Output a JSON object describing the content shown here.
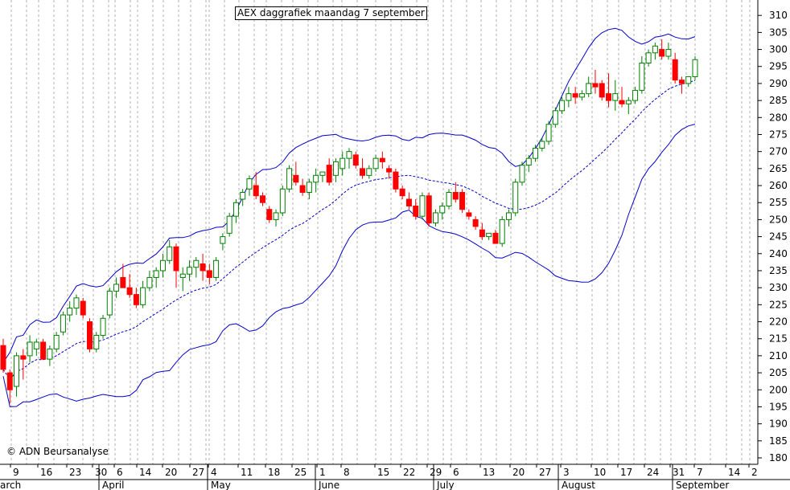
{
  "title": "AEX daggrafiek maandag 7 september",
  "copyright": "© ADN Beursanalyse",
  "chart_data": {
    "type": "candlestick",
    "title": "AEX daggrafiek maandag 7 september",
    "ylim": [
      178,
      315
    ],
    "y_ticks": [
      180,
      185,
      190,
      195,
      200,
      205,
      210,
      215,
      220,
      225,
      230,
      235,
      240,
      245,
      250,
      255,
      260,
      265,
      270,
      275,
      280,
      285,
      290,
      295,
      300,
      305,
      310
    ],
    "x_ticks": [
      "9",
      "16",
      "23",
      "30",
      "6",
      "14",
      "20",
      "27",
      "4",
      "11",
      "18",
      "25",
      "1",
      "8",
      "15",
      "22",
      "29",
      "6",
      "13",
      "20",
      "27",
      "3",
      "10",
      "17",
      "24",
      "31",
      "7",
      "14",
      "2"
    ],
    "months": [
      "arch",
      "April",
      "May",
      "June",
      "July",
      "August",
      "September"
    ],
    "grid": true,
    "overlays": [
      "bollinger-upper",
      "bollinger-middle",
      "bollinger-lower"
    ],
    "colors": {
      "up": "#008000",
      "down": "#ff0000",
      "bands": "#0000cc",
      "grid": "#b0b0b0"
    },
    "candles": [
      [
        213,
        215,
        205,
        206
      ],
      [
        205,
        206,
        196,
        200
      ],
      [
        201,
        211,
        198,
        210
      ],
      [
        210,
        212,
        203,
        209
      ],
      [
        210,
        216,
        208,
        214
      ],
      [
        212,
        215,
        210,
        214
      ],
      [
        214,
        215,
        210,
        209
      ],
      [
        209,
        213,
        207,
        212
      ],
      [
        212,
        217,
        211,
        216
      ],
      [
        217,
        223,
        216,
        222
      ],
      [
        222,
        226,
        220,
        224
      ],
      [
        224,
        228,
        222,
        227
      ],
      [
        226,
        227,
        221,
        222
      ],
      [
        220,
        221,
        211,
        212
      ],
      [
        212,
        217,
        211,
        216
      ],
      [
        216,
        222,
        215,
        221
      ],
      [
        222,
        230,
        221,
        229
      ],
      [
        229,
        233,
        227,
        231
      ],
      [
        233,
        237,
        230,
        230
      ],
      [
        230,
        234,
        227,
        228
      ],
      [
        228,
        230,
        224,
        225
      ],
      [
        225,
        232,
        224,
        230
      ],
      [
        230,
        235,
        229,
        233
      ],
      [
        233,
        236,
        230,
        235
      ],
      [
        235,
        240,
        233,
        238
      ],
      [
        238,
        244,
        237,
        242
      ],
      [
        242,
        243,
        230,
        235
      ],
      [
        233,
        236,
        229,
        234
      ],
      [
        234,
        238,
        232,
        236
      ],
      [
        236,
        239,
        233,
        238
      ],
      [
        237,
        240,
        232,
        235
      ],
      [
        235,
        237,
        231,
        233
      ],
      [
        233,
        239,
        232,
        238
      ],
      [
        243,
        246,
        241,
        245
      ],
      [
        246,
        252,
        245,
        251
      ],
      [
        251,
        256,
        249,
        255
      ],
      [
        256,
        259,
        254,
        258
      ],
      [
        259,
        263,
        257,
        262
      ],
      [
        260,
        264,
        256,
        257
      ],
      [
        257,
        258,
        254,
        255
      ],
      [
        253,
        254,
        249,
        250
      ],
      [
        250,
        253,
        248,
        252
      ],
      [
        252,
        260,
        251,
        259
      ],
      [
        259,
        266,
        258,
        265
      ],
      [
        263,
        267,
        260,
        261
      ],
      [
        260,
        262,
        257,
        258
      ],
      [
        258,
        262,
        256,
        261
      ],
      [
        261,
        265,
        258,
        263
      ],
      [
        263,
        264,
        261,
        264
      ],
      [
        266,
        268,
        260,
        261
      ],
      [
        263,
        268,
        261,
        267
      ],
      [
        265,
        270,
        263,
        268
      ],
      [
        268,
        271,
        265,
        270
      ],
      [
        269,
        270,
        265,
        266
      ],
      [
        265,
        268,
        262,
        263
      ],
      [
        263,
        266,
        262,
        265
      ],
      [
        265,
        269,
        264,
        268
      ],
      [
        268,
        270,
        265,
        267
      ],
      [
        265,
        266,
        262,
        264
      ],
      [
        264,
        265,
        258,
        259
      ],
      [
        259,
        260,
        256,
        257
      ],
      [
        256,
        258,
        253,
        254
      ],
      [
        254,
        256,
        250,
        251
      ],
      [
        251,
        258,
        250,
        257
      ],
      [
        257,
        258,
        248,
        249
      ],
      [
        249,
        253,
        248,
        252
      ],
      [
        252,
        255,
        250,
        254
      ],
      [
        254,
        259,
        253,
        258
      ],
      [
        258,
        261,
        255,
        256
      ],
      [
        258,
        259,
        252,
        253
      ],
      [
        252,
        253,
        250,
        251
      ],
      [
        250,
        251,
        247,
        248
      ],
      [
        247,
        249,
        244,
        245
      ],
      [
        245,
        246,
        244,
        246
      ],
      [
        246,
        247,
        243,
        243
      ],
      [
        243,
        251,
        242,
        250
      ],
      [
        250,
        253,
        248,
        252
      ],
      [
        252,
        262,
        251,
        261
      ],
      [
        261,
        267,
        260,
        266
      ],
      [
        266,
        269,
        264,
        268
      ],
      [
        268,
        272,
        267,
        271
      ],
      [
        271,
        274,
        270,
        273
      ],
      [
        273,
        279,
        272,
        278
      ],
      [
        278,
        283,
        277,
        282
      ],
      [
        282,
        286,
        281,
        285
      ],
      [
        285,
        289,
        283,
        287
      ],
      [
        287,
        289,
        284,
        286
      ],
      [
        286,
        288,
        285,
        287
      ],
      [
        287,
        292,
        286,
        290
      ],
      [
        290,
        294,
        287,
        289
      ],
      [
        290,
        291,
        285,
        286
      ],
      [
        287,
        293,
        283,
        285
      ],
      [
        285,
        291,
        282,
        287
      ],
      [
        285,
        289,
        283,
        284
      ],
      [
        284,
        286,
        281,
        285
      ],
      [
        285,
        289,
        284,
        288
      ],
      [
        288,
        298,
        287,
        296
      ],
      [
        296,
        300,
        295,
        299
      ],
      [
        299,
        302,
        297,
        301
      ],
      [
        300,
        303,
        297,
        298
      ],
      [
        298,
        302,
        297,
        300
      ],
      [
        297,
        299,
        290,
        291
      ],
      [
        291,
        292,
        287,
        290
      ],
      [
        290,
        292,
        289,
        292
      ],
      [
        292,
        298,
        291,
        297
      ]
    ]
  }
}
